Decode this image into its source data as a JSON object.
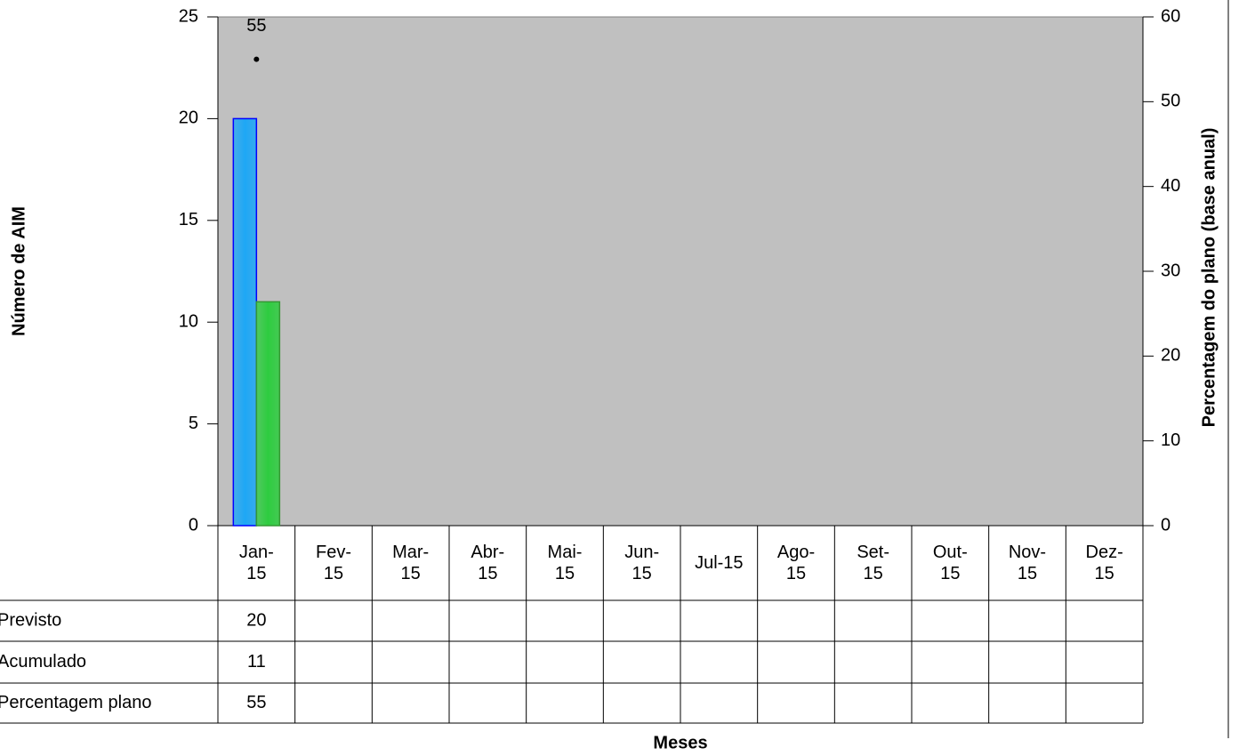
{
  "chart_data": {
    "type": "bar",
    "x_title": "Meses",
    "y_title": "Número de AIM",
    "y2_title": "Percentagem do plano (base anual)",
    "categories": [
      "Jan-15",
      "Fev-15",
      "Mar-15",
      "Abr-15",
      "Mai-15",
      "Jun-15",
      "Jul-15",
      "Ago-15",
      "Set-15",
      "Out-15",
      "Nov-15",
      "Dez-15"
    ],
    "series": [
      {
        "name": "Previsto",
        "color": "#1ea7f5",
        "border": "#0000ff",
        "values": [
          20,
          null,
          null,
          null,
          null,
          null,
          null,
          null,
          null,
          null,
          null,
          null
        ]
      },
      {
        "name": "Acumulado",
        "color": "#2ecc40",
        "border": "#339933",
        "values": [
          11,
          null,
          null,
          null,
          null,
          null,
          null,
          null,
          null,
          null,
          null,
          null
        ]
      },
      {
        "name": "Percentagem plano",
        "type": "scatter",
        "axis": "y2",
        "color": "#000000",
        "values": [
          55,
          null,
          null,
          null,
          null,
          null,
          null,
          null,
          null,
          null,
          null,
          null
        ]
      }
    ],
    "ylim": [
      0,
      25
    ],
    "yticks": [
      0,
      5,
      10,
      15,
      20,
      25
    ],
    "y2lim": [
      0,
      60
    ],
    "y2ticks": [
      0,
      10,
      20,
      30,
      40,
      50,
      60
    ],
    "plot_background": "#c0c0c0",
    "data_table": true
  }
}
